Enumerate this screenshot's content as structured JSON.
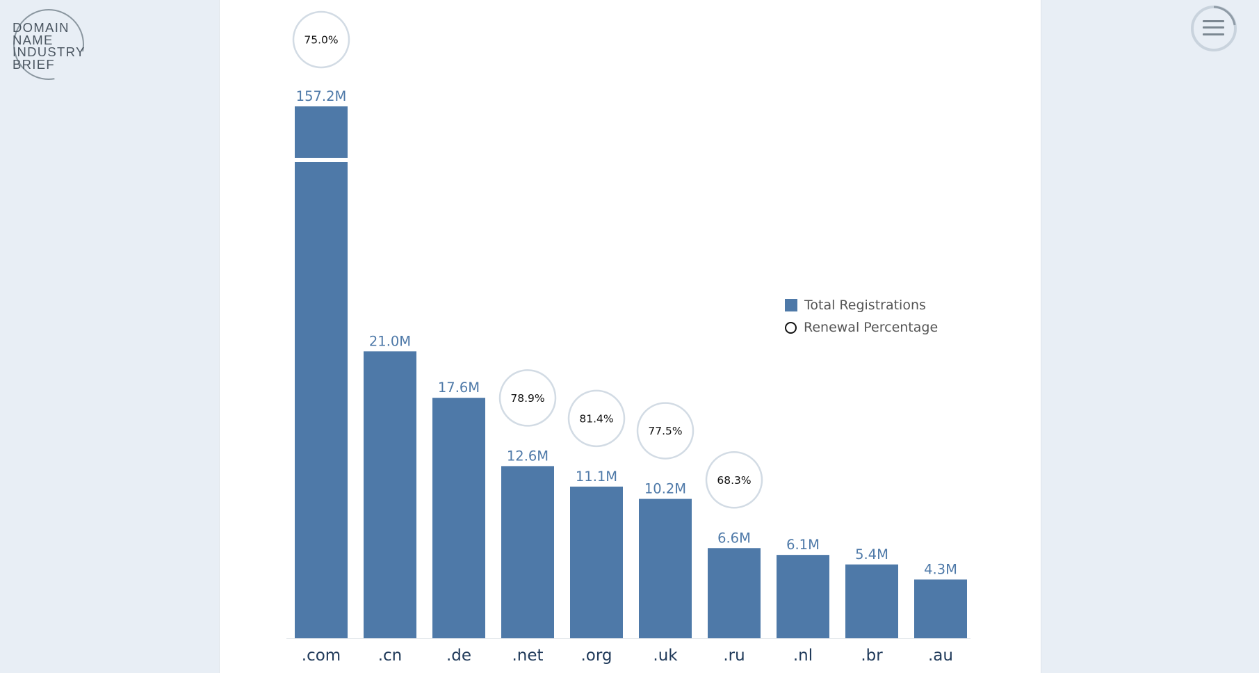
{
  "logo": {
    "lines": [
      "DOMAIN",
      "NAME",
      "INDUSTRY",
      "BRIEF"
    ]
  },
  "menu": {
    "icon": "hamburger-menu-icon"
  },
  "colors": {
    "bar": "#4e79a8",
    "label": "#4e79a8",
    "circle_border": "#d2dbe4",
    "axis_text": "#203a5a",
    "background": "#e8eef5"
  },
  "chart_data": {
    "type": "bar",
    "categories": [
      ".com",
      ".cn",
      ".de",
      ".net",
      ".org",
      ".uk",
      ".ru",
      ".nl",
      ".br",
      ".au"
    ],
    "series": [
      {
        "name": "Total Registrations",
        "values": [
          157.2,
          21.0,
          17.6,
          12.6,
          11.1,
          10.2,
          6.6,
          6.1,
          5.4,
          4.3
        ],
        "labels": [
          "157.2M",
          "21.0M",
          "17.6M",
          "12.6M",
          "11.1M",
          "10.2M",
          "6.6M",
          "6.1M",
          "5.4M",
          "4.3M"
        ]
      },
      {
        "name": "Renewal Percentage",
        "values": [
          75.0,
          null,
          null,
          78.9,
          81.4,
          77.5,
          68.3,
          null,
          null,
          null
        ],
        "labels": [
          "75.0%",
          "",
          "",
          "78.9%",
          "81.4%",
          "77.5%",
          "68.3%",
          "",
          "",
          ""
        ]
      }
    ],
    "axis_break": {
      "category": ".com"
    },
    "legend": {
      "position": "right",
      "entries": [
        "Total Registrations",
        "Renewal Percentage"
      ]
    },
    "grid": false
  }
}
